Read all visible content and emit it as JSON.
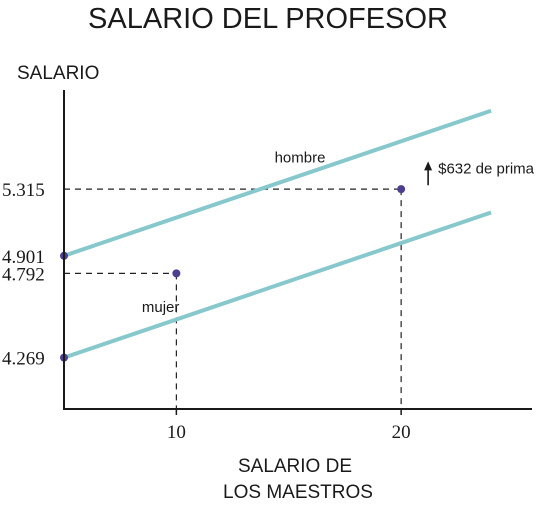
{
  "chart_data": {
    "type": "line",
    "title": "SALARIO DEL PROFESOR",
    "ylabel": "SALARIO",
    "xlabel_lines": [
      "SALARIO DE",
      "LOS MAESTROS"
    ],
    "x_ticks": [
      10,
      20
    ],
    "y_ticks": [
      "5.315",
      "4.901",
      "4.792",
      "4.269"
    ],
    "xlim": [
      5,
      26
    ],
    "ylim": [
      3.95,
      5.98
    ],
    "grid": false,
    "series": [
      {
        "name": "hombre",
        "color": "#86c8cc",
        "x": [
          5,
          24
        ],
        "y": [
          4.901,
          5.8017
        ]
      },
      {
        "name": "mujer",
        "color": "#86c8cc",
        "x": [
          5,
          24
        ],
        "y": [
          4.269,
          5.1697
        ]
      }
    ],
    "marked_points": [
      {
        "x": 5,
        "y": 4.901
      },
      {
        "x": 5,
        "y": 4.269
      },
      {
        "x": 10,
        "y": 4.792
      },
      {
        "x": 20,
        "y": 5.315
      }
    ],
    "guide_lines": [
      {
        "x": 10,
        "y": 4.792
      },
      {
        "x": 20,
        "y": 5.315
      }
    ],
    "annotations": [
      {
        "text": "$632 de prima",
        "from_x": 21.2,
        "from_y": 5.339,
        "to_y": 5.475
      }
    ],
    "point_color": "#4b3f8f"
  }
}
